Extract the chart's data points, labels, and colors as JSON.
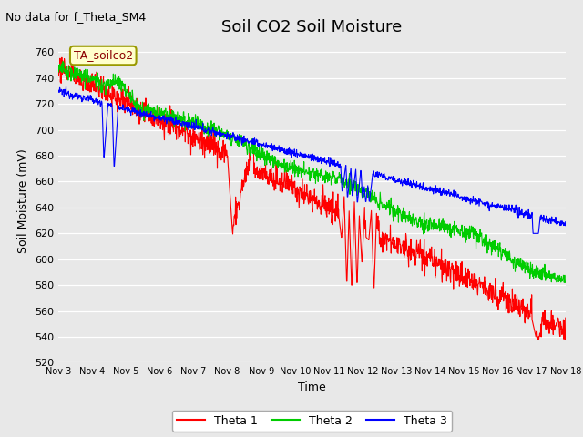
{
  "title": "Soil CO2 Soil Moisture",
  "subtitle": "No data for f_Theta_SM4",
  "ylabel": "Soil Moisture (mV)",
  "xlabel": "Time",
  "annotation": "TA_soilco2",
  "ylim": [
    520,
    770
  ],
  "yticks": [
    520,
    540,
    560,
    580,
    600,
    620,
    640,
    660,
    680,
    700,
    720,
    740,
    760
  ],
  "xtick_labels": [
    "Nov 3",
    "Nov 4",
    "Nov 5",
    "Nov 6",
    "Nov 7",
    "Nov 8",
    "Nov 9",
    "Nov 10",
    "Nov 11",
    "Nov 12",
    "Nov 13",
    "Nov 14",
    "Nov 15",
    "Nov 16",
    "Nov 17",
    "Nov 18"
  ],
  "legend_labels": [
    "Theta 1",
    "Theta 2",
    "Theta 3"
  ],
  "line_colors": [
    "#ff0000",
    "#00cc00",
    "#0000ff"
  ],
  "plot_bg": "#e8e8e8",
  "fig_bg": "#e8e8e8",
  "title_fontsize": 13,
  "axis_label_fontsize": 9,
  "tick_fontsize": 8,
  "subtitle_fontsize": 9,
  "n_days": 15,
  "n_points": 1440
}
